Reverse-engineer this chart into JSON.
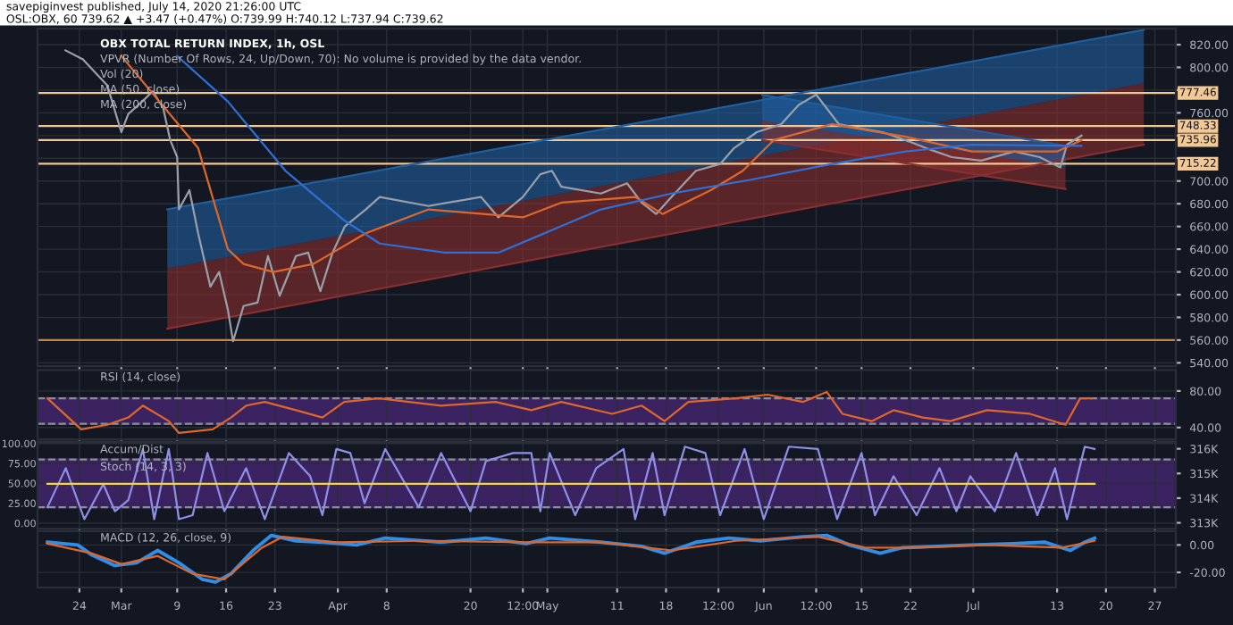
{
  "chart_data": [
    {
      "type": "line",
      "title": "OBX TOTAL RETURN INDEX, 1h, OSL",
      "subtitle": "OSL:OBX, 60 739.62 ▲ +3.47 (+0.47%) O:739.99 H:740.12 L:737.94 C:739.62",
      "annotations": [
        "savepiginvest published, July 14, 2020 21:26:00 UTC",
        "VPVR (Number Of Rows, 24, Up/Down, 70): No volume is provided by the data vendor.",
        "Vol (20)",
        "MA (50, close)",
        "MA (200, close)"
      ],
      "xlim": [
        "2020-02-18",
        "2020-07-30"
      ],
      "ylim": [
        537,
        834
      ],
      "xticks": [
        {
          "value": "2020-02-24",
          "label": null
        },
        {
          "value": "2020-03-01",
          "label": null
        },
        {
          "value": "2020-03-09",
          "label": null
        },
        {
          "value": "2020-03-16",
          "label": null
        },
        {
          "value": "2020-03-23",
          "label": null
        },
        {
          "value": "2020-04-01",
          "label": null
        },
        {
          "value": "2020-04-08",
          "label": null
        },
        {
          "value": "2020-04-20",
          "label": null
        },
        {
          "value": "2020-04-27T12:00",
          "label": null
        },
        {
          "value": "2020-05-01",
          "label": null
        },
        {
          "value": "2020-05-11",
          "label": null
        },
        {
          "value": "2020-05-18",
          "label": null
        },
        {
          "value": "2020-05-25T12:00",
          "label": null
        },
        {
          "value": "2020-06-01",
          "label": null
        },
        {
          "value": "2020-06-08T12:00",
          "label": null
        },
        {
          "value": "2020-06-15",
          "label": null
        },
        {
          "value": "2020-06-22",
          "label": null
        },
        {
          "value": "2020-07-01",
          "label": null
        },
        {
          "value": "2020-07-13",
          "label": null
        },
        {
          "value": "2020-07-20",
          "label": null
        },
        {
          "value": "2020-07-27",
          "label": null
        }
      ],
      "yticks": [
        {
          "value": 540,
          "label": "540.00"
        },
        {
          "value": 560,
          "label": "560.00"
        },
        {
          "value": 580,
          "label": "580.00"
        },
        {
          "value": 600,
          "label": "600.00"
        },
        {
          "value": 620,
          "label": "620.00"
        },
        {
          "value": 640,
          "label": "640.00"
        },
        {
          "value": 660,
          "label": "660.00"
        },
        {
          "value": 680,
          "label": "680.00"
        },
        {
          "value": 700,
          "label": "700.00"
        },
        {
          "value": 720,
          "label": null
        },
        {
          "value": 740,
          "label": null
        },
        {
          "value": 760,
          "label": "760.00"
        },
        {
          "value": 780,
          "label": null
        },
        {
          "value": 800,
          "label": "800.00"
        },
        {
          "value": 820,
          "label": "820.00"
        }
      ],
      "tick_labels": "y",
      "grid": true,
      "ref_lines": [
        {
          "axis": "y",
          "value": 777.46,
          "label": "777.46",
          "color": "#f2c894"
        },
        {
          "axis": "y",
          "value": 748.33,
          "label": "748.33",
          "color": "#f2c894"
        },
        {
          "axis": "y",
          "value": 735.96,
          "label": "735.96",
          "color": "#f2c894"
        },
        {
          "axis": "y",
          "value": 715.22,
          "label": "715.22",
          "color": "#f2c894"
        },
        {
          "axis": "y",
          "value": 560,
          "color": "#c8834a"
        }
      ],
      "series": [
        {
          "color": "#1f5f9e",
          "x": [
            "2020-03-07T14:00",
            "2020-07-25T10:00"
          ],
          "values": [
            675,
            833
          ],
          "lower": [
            623,
            786
          ],
          "upper": [
            675,
            833
          ]
        },
        {
          "color": "#8a2f2f",
          "x": [
            "2020-03-07T14:00",
            "2020-07-25T10:00"
          ],
          "values": [
            570,
            732
          ],
          "lower": [
            570,
            732
          ],
          "upper": [
            623,
            786
          ]
        },
        {
          "color": "#1f5f9e",
          "x": [
            "2020-05-31T18:00",
            "2020-07-14T05:00"
          ],
          "values": [
            776,
            731
          ],
          "lower": [
            753,
            712
          ],
          "upper": [
            776,
            731
          ]
        },
        {
          "color": "#8a2f2f",
          "x": [
            "2020-05-31T18:00",
            "2020-07-14T05:00"
          ],
          "values": [
            736,
            693
          ],
          "lower": [
            736,
            693
          ],
          "upper": [
            753,
            712
          ]
        },
        {
          "color": "#9aa0aa",
          "x": [
            "2020-02-22",
            "2020-02-24T12:00",
            "2020-02-28",
            "2020-03-01",
            "2020-03-02",
            "2020-03-04",
            "2020-03-05T12:00",
            "2020-03-07",
            "2020-03-08",
            "2020-03-09",
            "2020-03-09T06:00",
            "2020-03-10T18:00",
            "2020-03-12",
            "2020-03-13T18:00",
            "2020-03-15",
            "2020-03-16T06:00",
            "2020-03-17",
            "2020-03-18T12:00",
            "2020-03-20T12:00",
            "2020-03-22",
            "2020-03-23T16:00",
            "2020-03-26",
            "2020-03-27T18:00",
            "2020-03-29T12:00",
            "2020-03-31T06:00",
            "2020-04-02",
            "2020-04-05",
            "2020-04-07",
            "2020-04-14",
            "2020-04-21T12:00",
            "2020-04-24",
            "2020-04-27T12:00",
            "2020-04-30",
            "2020-05-01T16:00",
            "2020-05-03",
            "2020-05-08T16:00",
            "2020-05-12T10:00",
            "2020-05-14T12:00",
            "2020-05-16T14:00",
            "2020-05-18T19:00",
            "2020-05-22T07:00",
            "2020-05-25T18:00",
            "2020-05-27T18:00",
            "2020-05-31",
            "2020-06-03T12:00",
            "2020-06-06",
            "2020-06-08T12:00",
            "2020-06-10",
            "2020-06-11T18:00",
            "2020-06-15",
            "2020-06-18",
            "2020-06-21T07:00",
            "2020-06-24T05:00",
            "2020-06-27T22:00",
            "2020-07-02T03:00",
            "2020-07-06T21:00",
            "2020-07-10T12:00",
            "2020-07-13T11:00",
            "2020-07-14T10:00",
            "2020-07-16T12:00"
          ],
          "values": [
            815,
            807,
            784,
            743,
            759,
            770,
            779,
            764,
            736,
            721,
            675,
            692,
            654,
            607,
            620,
            587,
            559,
            590,
            593,
            634,
            599,
            634,
            637,
            603,
            637,
            660,
            675,
            686,
            678,
            686,
            668,
            686,
            706,
            709,
            695,
            689,
            698,
            681,
            671,
            686,
            709,
            715,
            729,
            743,
            750,
            767,
            776,
            764,
            750,
            746,
            743,
            736,
            729,
            721,
            718,
            726,
            721,
            712,
            732,
            740
          ]
        },
        {
          "color": "#e0672b",
          "x": [
            "2020-03-01",
            "2020-03-12",
            "2020-03-16T06:00",
            "2020-03-18T12:00",
            "2020-03-22T18:00",
            "2020-03-28T12:00",
            "2020-04-05",
            "2020-04-14",
            "2020-04-27T12:00",
            "2020-05-03",
            "2020-05-13T14:00",
            "2020-05-17T12:00",
            "2020-05-24T10:00",
            "2020-05-29",
            "2020-06-02T10:00",
            "2020-06-10T18:00",
            "2020-06-21T07:00",
            "2020-06-30T19:00",
            "2020-07-13",
            "2020-07-16T12:00"
          ],
          "values": [
            810,
            729,
            640,
            627,
            620,
            627,
            654,
            675,
            668,
            681,
            686,
            671,
            692,
            709,
            736,
            750,
            739,
            726,
            726,
            736
          ]
        },
        {
          "color": "#2f6fd6",
          "x": [
            "2020-03-09",
            "2020-03-16T06:00",
            "2020-03-24T12:00",
            "2020-04-02",
            "2020-04-07",
            "2020-04-16T07:00",
            "2020-04-24",
            "2020-04-29T10:00",
            "2020-05-08T16:00",
            "2020-05-18T19:00",
            "2020-05-30",
            "2020-06-10T18:00",
            "2020-06-21T07:00",
            "2020-06-30T19:00",
            "2020-07-16T12:00"
          ],
          "values": [
            810,
            770,
            709,
            665,
            645,
            637,
            637,
            651,
            675,
            689,
            701,
            715,
            726,
            732,
            731
          ]
        }
      ]
    },
    {
      "type": "line",
      "title": "RSI (14, close)",
      "xlim": [
        "2020-02-18",
        "2020-07-30"
      ],
      "ylim": [
        27,
        103
      ],
      "xticks": [
        {
          "value": "2020-02-24",
          "label": null
        },
        {
          "value": "2020-03-01",
          "label": null
        },
        {
          "value": "2020-03-09",
          "label": null
        },
        {
          "value": "2020-03-16",
          "label": null
        },
        {
          "value": "2020-03-23",
          "label": null
        },
        {
          "value": "2020-04-01",
          "label": null
        },
        {
          "value": "2020-04-08",
          "label": null
        },
        {
          "value": "2020-04-20",
          "label": null
        },
        {
          "value": "2020-04-27T12:00",
          "label": null
        },
        {
          "value": "2020-05-01",
          "label": null
        },
        {
          "value": "2020-05-11",
          "label": null
        },
        {
          "value": "2020-05-18",
          "label": null
        },
        {
          "value": "2020-05-25T12:00",
          "label": null
        },
        {
          "value": "2020-06-01",
          "label": null
        },
        {
          "value": "2020-06-08T12:00",
          "label": null
        },
        {
          "value": "2020-06-15",
          "label": null
        },
        {
          "value": "2020-06-22",
          "label": null
        },
        {
          "value": "2020-07-01",
          "label": null
        },
        {
          "value": "2020-07-13",
          "label": null
        },
        {
          "value": "2020-07-20",
          "label": null
        },
        {
          "value": "2020-07-27",
          "label": null
        }
      ],
      "yticks": [
        {
          "value": 40,
          "label": "40.00"
        },
        {
          "value": 80,
          "label": "80.00"
        }
      ],
      "tick_labels": "y",
      "grid": true,
      "bands": [
        {
          "axis": "y",
          "from": 44,
          "to": 72,
          "color": "#3b2260"
        }
      ],
      "ref_lines": [
        {
          "axis": "y",
          "value": 72,
          "color": "#8a8e99",
          "line_style": "dashed"
        },
        {
          "axis": "y",
          "value": 44,
          "color": "#8a8e99",
          "line_style": "dashed"
        }
      ],
      "series": [
        {
          "color": "#e0672b",
          "x": [
            "2020-02-19T10:00",
            "2020-02-24T06:00",
            "2020-02-28",
            "2020-03-02",
            "2020-03-04T02:00",
            "2020-03-07T19:00",
            "2020-03-09T06:00",
            "2020-03-14T02:00",
            "2020-03-16T17:00",
            "2020-03-18T21:00",
            "2020-03-21T13:00",
            "2020-03-26",
            "2020-03-29T19:00",
            "2020-04-01T22:00",
            "2020-04-06T21:00",
            "2020-04-15T19:00",
            "2020-04-23T14:00",
            "2020-04-28T17:00",
            "2020-05-03",
            "2020-05-10T07:00",
            "2020-05-14T12:00",
            "2020-05-17T19:00",
            "2020-05-21T05:00",
            "2020-05-28",
            "2020-06-01T13:00",
            "2020-06-06T14:00",
            "2020-06-10",
            "2020-06-12T06:00",
            "2020-06-16T11:00",
            "2020-06-19T14:00",
            "2020-06-23T18:00",
            "2020-06-27T17:00",
            "2020-07-02T23:00",
            "2020-07-09T02:00",
            "2020-07-14T05:00",
            "2020-07-16T07:00",
            "2020-07-17T22:00"
          ],
          "values": [
            72,
            38,
            43,
            51,
            64,
            47,
            34,
            38,
            51,
            64,
            68,
            59,
            51,
            68,
            72,
            64,
            68,
            59,
            68,
            55,
            64,
            47,
            68,
            72,
            76,
            68,
            79,
            55,
            47,
            59,
            51,
            47,
            59,
            55,
            43,
            72,
            72
          ]
        }
      ]
    },
    {
      "type": "line",
      "title": "Accum/Dist",
      "annotations": [
        "Stoch (14, 3, 3)"
      ],
      "xlim": [
        "2020-02-18",
        "2020-07-30"
      ],
      "ylim": [
        -7,
        102
      ],
      "y2lim": [
        312760,
        316280
      ],
      "xticks": [
        {
          "value": "2020-02-24",
          "label": null
        },
        {
          "value": "2020-03-01",
          "label": null
        },
        {
          "value": "2020-03-09",
          "label": null
        },
        {
          "value": "2020-03-16",
          "label": null
        },
        {
          "value": "2020-03-23",
          "label": null
        },
        {
          "value": "2020-04-01",
          "label": null
        },
        {
          "value": "2020-04-08",
          "label": null
        },
        {
          "value": "2020-04-20",
          "label": null
        },
        {
          "value": "2020-04-27T12:00",
          "label": null
        },
        {
          "value": "2020-05-01",
          "label": null
        },
        {
          "value": "2020-05-11",
          "label": null
        },
        {
          "value": "2020-05-18",
          "label": null
        },
        {
          "value": "2020-05-25T12:00",
          "label": null
        },
        {
          "value": "2020-06-01",
          "label": null
        },
        {
          "value": "2020-06-08T12:00",
          "label": null
        },
        {
          "value": "2020-06-15",
          "label": null
        },
        {
          "value": "2020-06-22",
          "label": null
        },
        {
          "value": "2020-07-01",
          "label": null
        },
        {
          "value": "2020-07-13",
          "label": null
        },
        {
          "value": "2020-07-20",
          "label": null
        },
        {
          "value": "2020-07-27",
          "label": null
        }
      ],
      "yticks": [
        {
          "value": 0,
          "label": "0.00"
        },
        {
          "value": 25,
          "label": "25.00"
        },
        {
          "value": 50,
          "label": "50.00"
        },
        {
          "value": 75,
          "label": "75.00"
        },
        {
          "value": 100,
          "label": "100.00"
        }
      ],
      "y2ticks": [
        {
          "value": 313000,
          "label": "313K"
        },
        {
          "value": 314000,
          "label": "314K"
        },
        {
          "value": 315000,
          "label": "315K"
        },
        {
          "value": 316000,
          "label": "316K"
        }
      ],
      "tick_labels": "y",
      "grid": true,
      "bands": [
        {
          "axis": "y",
          "from": 20,
          "to": 80,
          "color": "#3b2260"
        }
      ],
      "ref_lines": [
        {
          "axis": "y",
          "value": 80,
          "color": "#8a8e99",
          "line_style": "dashed"
        },
        {
          "axis": "y",
          "value": 20,
          "color": "#8a8e99",
          "line_style": "dashed"
        }
      ],
      "series": [
        {
          "color": "#8f8fe8",
          "x": [
            "2020-02-19T10:00",
            "2020-02-22T01:00",
            "2020-02-24T17:00",
            "2020-02-27T10:00",
            "2020-02-29T02:00",
            "2020-03-02",
            "2020-03-04T02:00",
            "2020-03-05T17:00",
            "2020-03-07T19:00",
            "2020-03-09T06:00",
            "2020-03-11T05:00",
            "2020-03-13T08:00",
            "2020-03-15T18:00",
            "2020-03-18T21:00",
            "2020-03-21T13:00",
            "2020-03-25",
            "2020-03-28T01:00",
            "2020-03-29T19:00",
            "2020-03-31T19:00",
            "2020-04-02T19:00",
            "2020-04-04T20:00",
            "2020-04-07T19:00",
            "2020-04-12T14:00",
            "2020-04-15T19:00",
            "2020-04-20",
            "2020-04-22T05:00",
            "2020-04-26T03:00",
            "2020-04-28T17:00",
            "2020-04-30",
            "2020-05-01T08:00",
            "2020-05-05",
            "2020-05-08",
            "2020-05-11T22:00",
            "2020-05-13T14:00",
            "2020-05-16T02:00",
            "2020-05-17T19:00",
            "2020-05-20T17:00",
            "2020-05-23T15:00",
            "2020-05-25T18:00",
            "2020-05-29T06:00",
            "2020-06-01",
            "2020-06-04T14:00",
            "2020-06-08T18:00",
            "2020-06-11T12:00",
            "2020-06-15",
            "2020-06-16T22:00",
            "2020-06-19T14:00",
            "2020-06-22T21:00",
            "2020-06-26T04:00",
            "2020-06-28T14:00",
            "2020-06-30T14:00",
            "2020-07-04T02:00",
            "2020-07-07T03:00",
            "2020-07-10T04:00",
            "2020-07-12T17:00",
            "2020-07-14T10:00",
            "2020-07-16T23:00",
            "2020-07-18T09:00"
          ],
          "values": [
            20,
            69,
            5,
            49,
            15,
            29,
            93,
            5,
            93,
            5,
            10,
            88,
            15,
            69,
            5,
            88,
            59,
            10,
            93,
            88,
            25,
            93,
            20,
            88,
            15,
            78,
            88,
            88,
            15,
            88,
            10,
            69,
            93,
            5,
            88,
            10,
            96,
            88,
            10,
            93,
            5,
            96,
            93,
            5,
            88,
            10,
            59,
            10,
            69,
            15,
            59,
            15,
            88,
            10,
            69,
            5,
            96,
            93
          ]
        },
        {
          "color": "#f5d442",
          "axis": "y2",
          "x": [
            "2020-02-19T10:00",
            "2020-07-18T09:00"
          ],
          "values": [
            314580,
            314580
          ]
        }
      ]
    },
    {
      "type": "line",
      "title": "MACD (12, 26, close, 9)",
      "xlim": [
        "2020-02-18",
        "2020-07-30"
      ],
      "ylim": [
        -31,
        10
      ],
      "xticks": [
        {
          "value": "2020-02-24",
          "label": "24"
        },
        {
          "value": "2020-03-01",
          "label": "Mar"
        },
        {
          "value": "2020-03-09",
          "label": "9"
        },
        {
          "value": "2020-03-16",
          "label": "16"
        },
        {
          "value": "2020-03-23",
          "label": "23"
        },
        {
          "value": "2020-04-01",
          "label": "Apr"
        },
        {
          "value": "2020-04-08",
          "label": "8"
        },
        {
          "value": "2020-04-20",
          "label": "20"
        },
        {
          "value": "2020-04-27T12:00",
          "label": "12:00"
        },
        {
          "value": "2020-05-01",
          "label": "May"
        },
        {
          "value": "2020-05-11",
          "label": "11"
        },
        {
          "value": "2020-05-18",
          "label": "18"
        },
        {
          "value": "2020-05-25T12:00",
          "label": "12:00"
        },
        {
          "value": "2020-06-01",
          "label": "Jun"
        },
        {
          "value": "2020-06-08T12:00",
          "label": "12:00"
        },
        {
          "value": "2020-06-15",
          "label": "15"
        },
        {
          "value": "2020-06-22",
          "label": "22"
        },
        {
          "value": "2020-07-01",
          "label": "Jul"
        },
        {
          "value": "2020-07-13",
          "label": "13"
        },
        {
          "value": "2020-07-20",
          "label": "20"
        },
        {
          "value": "2020-07-27",
          "label": "27"
        }
      ],
      "yticks": [
        {
          "value": -20,
          "label": "-20.00"
        },
        {
          "value": 0,
          "label": "0.00"
        }
      ],
      "grid": true,
      "series": [
        {
          "color": "#2f8fe8",
          "x": [
            "2020-02-19T10:00",
            "2020-02-23T18:00",
            "2020-02-25T17:00",
            "2020-02-29T02:00",
            "2020-03-03T04:00",
            "2020-03-06T05:00",
            "2020-03-09T06:00",
            "2020-03-12T14:00",
            "2020-03-14T12:00",
            "2020-03-16T17:00",
            "2020-03-19T21:00",
            "2020-03-22T12:00",
            "2020-03-26",
            "2020-03-29T19:00",
            "2020-04-03T17:00",
            "2020-04-07T19:00",
            "2020-04-15T19:00",
            "2020-04-22T05:00",
            "2020-04-27T23:00",
            "2020-05-01T08:00",
            "2020-05-08T16:00",
            "2020-05-14T12:00",
            "2020-05-17T19:00",
            "2020-05-22T07:00",
            "2020-05-27",
            "2020-05-31T12:00",
            "2020-06-06T14:00",
            "2020-06-10",
            "2020-06-13T06:00",
            "2020-06-17T16:00",
            "2020-06-20T20:00",
            "2020-06-25T17:00",
            "2020-06-30T14:00",
            "2020-07-06T14:00",
            "2020-07-11T07:00",
            "2020-07-14T21:00",
            "2020-07-16T23:00",
            "2020-07-18T09:00"
          ],
          "values": [
            2,
            0,
            -7,
            -15,
            -13,
            -4,
            -13,
            -25,
            -27,
            -21,
            -4,
            7,
            3,
            2,
            0,
            5,
            2,
            5,
            1,
            5,
            2,
            -1,
            -6,
            2,
            5,
            3,
            6,
            7,
            0,
            -6,
            -2,
            -1,
            0,
            1,
            2,
            -4,
            2,
            5
          ]
        },
        {
          "color": "#e0672b",
          "x": [
            "2020-02-19T10:00",
            "2020-02-25T17:00",
            "2020-03-01T01:00",
            "2020-03-06T05:00",
            "2020-03-11T05:00",
            "2020-03-15T18:00",
            "2020-03-21T03:00",
            "2020-03-24T02:00",
            "2020-03-31T19:00",
            "2020-04-13T13:00",
            "2020-04-27T23:00",
            "2020-05-08T16:00",
            "2020-05-18T19:00",
            "2020-05-28",
            "2020-06-08T18:00",
            "2020-06-15T12:00",
            "2020-06-22T21:00",
            "2020-07-02T23:00",
            "2020-07-13T17:00",
            "2020-07-18T09:00"
          ],
          "values": [
            1,
            -6,
            -14,
            -8,
            -21,
            -25,
            -2,
            6,
            2,
            3,
            2,
            2,
            -4,
            3,
            6,
            -2,
            -2,
            0,
            -2,
            3
          ]
        }
      ]
    }
  ]
}
